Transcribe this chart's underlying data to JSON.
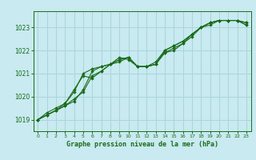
{
  "title": "Graphe pression niveau de la mer (hPa)",
  "bg_color": "#c8eaf0",
  "grid_color": "#aad4dc",
  "line_color": "#1a6b1a",
  "marker_color": "#1a6b1a",
  "x_min": -0.5,
  "x_max": 23.5,
  "y_min": 1018.5,
  "y_max": 1023.7,
  "y_ticks": [
    1019,
    1020,
    1021,
    1022,
    1023
  ],
  "x_ticks": [
    0,
    1,
    2,
    3,
    4,
    5,
    6,
    7,
    8,
    9,
    10,
    11,
    12,
    13,
    14,
    15,
    16,
    17,
    18,
    19,
    20,
    21,
    22,
    23
  ],
  "series": [
    [
      1019.0,
      1019.2,
      1019.4,
      1019.6,
      1019.8,
      1020.3,
      1021.1,
      1021.3,
      1021.4,
      1021.6,
      1021.7,
      1021.3,
      1021.3,
      1021.4,
      1021.9,
      1022.0,
      1022.3,
      1022.6,
      1023.0,
      1023.2,
      1023.3,
      1023.3,
      1023.3,
      1023.2
    ],
    [
      1019.0,
      1019.2,
      1019.4,
      1019.7,
      1020.3,
      1020.9,
      1020.8,
      1021.1,
      1021.4,
      1021.7,
      1021.6,
      1021.3,
      1021.3,
      1021.5,
      1022.0,
      1022.2,
      1022.4,
      1022.7,
      1023.0,
      1023.1,
      1023.3,
      1023.3,
      1023.3,
      1023.1
    ],
    [
      1019.0,
      1019.3,
      1019.5,
      1019.7,
      1020.2,
      1021.0,
      1021.2,
      1021.3,
      1021.4,
      1021.5,
      1021.7,
      1021.3,
      1021.3,
      1021.4,
      1022.0,
      1022.2,
      1022.4,
      1022.7,
      1023.0,
      1023.2,
      1023.3,
      1023.3,
      1023.3,
      1023.1
    ],
    [
      1019.0,
      1019.2,
      1019.4,
      1019.6,
      1019.9,
      1020.2,
      1020.9,
      1021.1,
      1021.4,
      1021.6,
      1021.7,
      1021.3,
      1021.3,
      1021.4,
      1021.9,
      1022.1,
      1022.3,
      1022.7,
      1023.0,
      1023.2,
      1023.3,
      1023.3,
      1023.3,
      1023.2
    ]
  ]
}
